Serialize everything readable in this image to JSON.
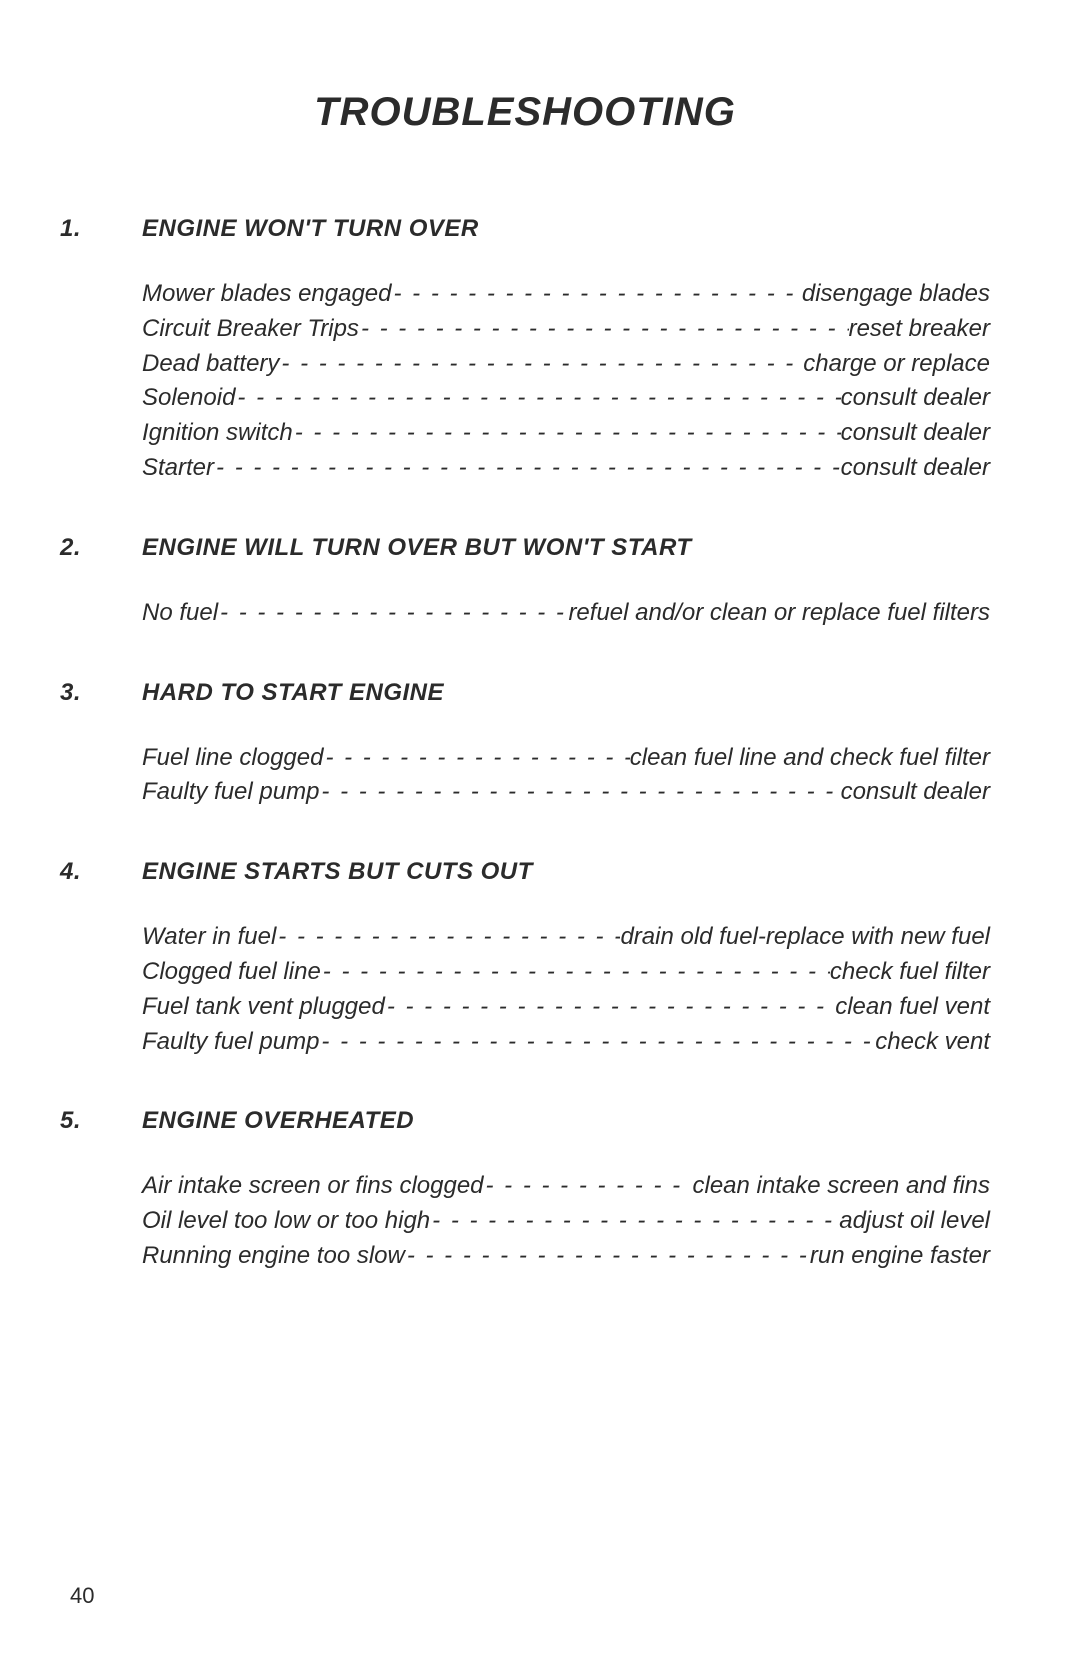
{
  "page_number": "40",
  "title": "TROUBLESHOOTING",
  "text_color": "#2b2b2b",
  "background_color": "#ffffff",
  "title_fontsize": 40,
  "body_fontsize": 24,
  "sections": [
    {
      "number": "1.",
      "heading": "ENGINE WON'T TURN OVER",
      "items": [
        {
          "cause": "Mower blades engaged",
          "remedy": "disengage blades"
        },
        {
          "cause": "Circuit Breaker Trips",
          "remedy": "reset breaker"
        },
        {
          "cause": "Dead battery",
          "remedy": "charge or replace"
        },
        {
          "cause": "Solenoid",
          "remedy": "consult dealer"
        },
        {
          "cause": "Ignition switch",
          "remedy": "consult dealer"
        },
        {
          "cause": "Starter",
          "remedy": "consult dealer"
        }
      ]
    },
    {
      "number": "2.",
      "heading": "ENGINE WILL TURN OVER BUT WON'T START",
      "items": [
        {
          "cause": "No fuel",
          "remedy": "refuel and/or clean or replace fuel filters"
        }
      ]
    },
    {
      "number": "3.",
      "heading": "HARD TO START ENGINE",
      "items": [
        {
          "cause": "Fuel line clogged",
          "remedy": "clean fuel line and check fuel filter"
        },
        {
          "cause": "Faulty fuel pump",
          "remedy": "consult dealer"
        }
      ]
    },
    {
      "number": "4.",
      "heading": "ENGINE STARTS BUT CUTS OUT",
      "items": [
        {
          "cause": "Water in fuel",
          "remedy": "drain old fuel-replace with new fuel"
        },
        {
          "cause": "Clogged fuel line",
          "remedy": "check fuel filter"
        },
        {
          "cause": "Fuel tank vent plugged",
          "remedy": "clean fuel vent"
        },
        {
          "cause": "Faulty fuel pump",
          "remedy": "check vent"
        }
      ]
    },
    {
      "number": "5.",
      "heading": "ENGINE OVERHEATED",
      "items": [
        {
          "cause": "Air intake screen or fins clogged",
          "remedy": "clean intake screen and fins"
        },
        {
          "cause": "Oil level too low or too high",
          "remedy": "adjust oil level"
        },
        {
          "cause": "Running engine too slow",
          "remedy": "run engine faster"
        }
      ]
    }
  ]
}
